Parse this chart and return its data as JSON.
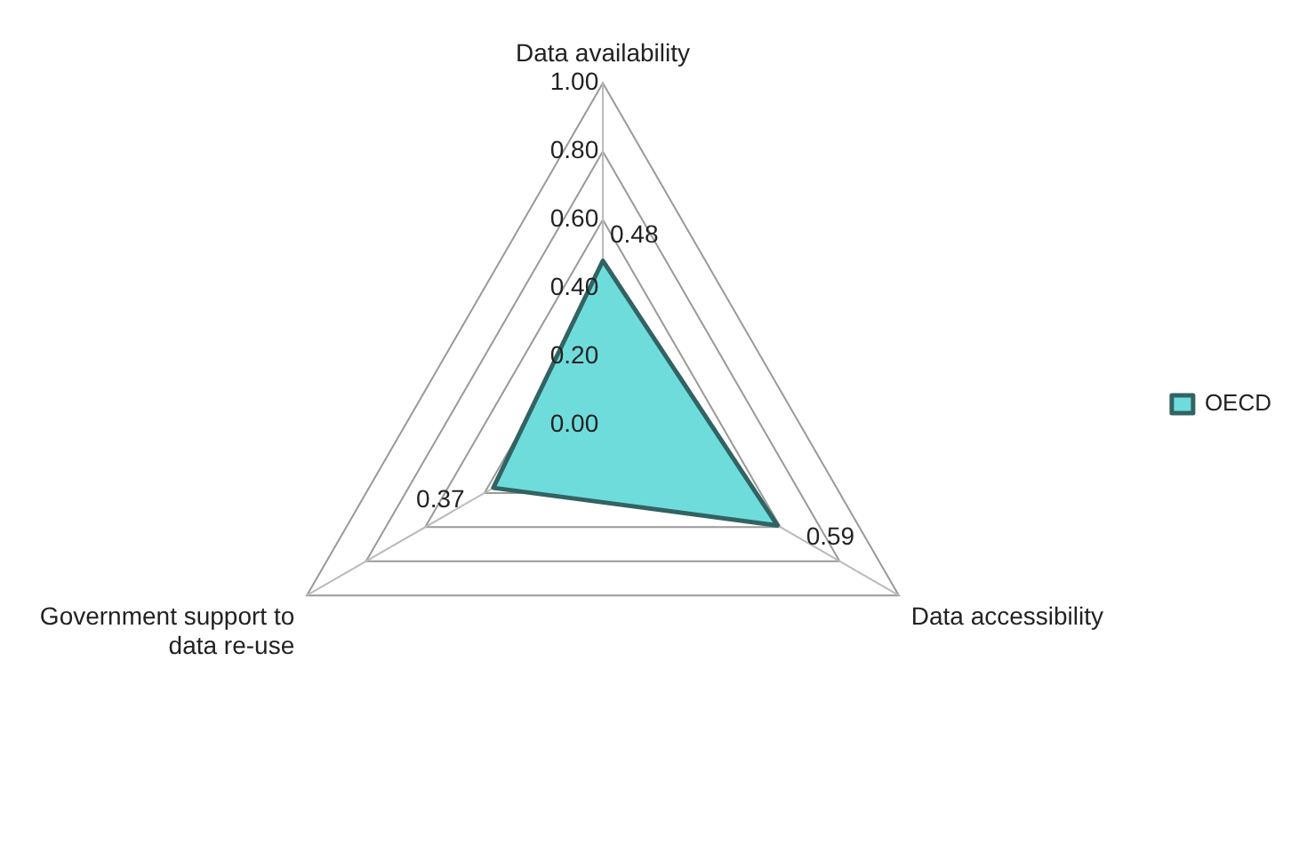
{
  "chart_data": {
    "type": "radar",
    "categories": [
      "Data availability",
      "Data accessibility",
      "Government support to data re-use"
    ],
    "series": [
      {
        "name": "OECD",
        "color": "#6fdcdc",
        "values": [
          0.48,
          0.59,
          0.37
        ]
      }
    ],
    "ylim": [
      0,
      1
    ],
    "yticks": [
      {
        "value": 0,
        "label": "0.00"
      },
      {
        "value": 0.2,
        "label": "0.20"
      },
      {
        "value": 0.4,
        "label": "0.40"
      },
      {
        "value": 0.6,
        "label": "0.60"
      },
      {
        "value": 0.8,
        "label": "0.80"
      },
      {
        "value": 1,
        "label": "1.00"
      }
    ],
    "grid": true,
    "legend": "right",
    "data_labels": true
  }
}
